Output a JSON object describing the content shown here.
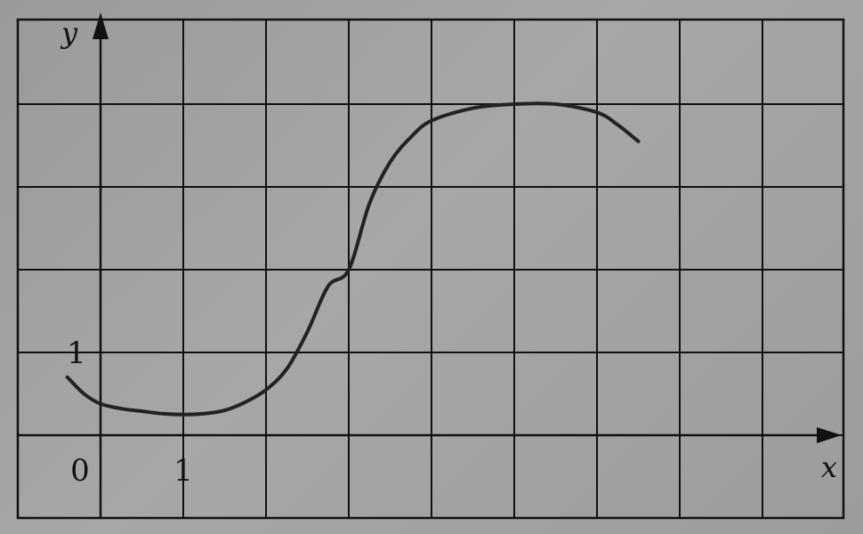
{
  "chart_data": {
    "type": "line",
    "xlabel": "x",
    "ylabel": "y",
    "xlim": [
      -0.4,
      8
    ],
    "ylim": [
      -1,
      5
    ],
    "grid": true,
    "tick_labels": {
      "origin": "0",
      "x_one": "1",
      "y_one": "1"
    },
    "series": [
      {
        "x": [
          -0.4,
          -0.2,
          0,
          0.25,
          0.5,
          0.75,
          1,
          1.25,
          1.5,
          1.75,
          2,
          2.25,
          2.5,
          2.75,
          3,
          3.25,
          3.5,
          3.75,
          4,
          4.5,
          5,
          5.5,
          6,
          6.25,
          6.5
        ],
        "y": [
          0.7,
          0.5,
          0.38,
          0.32,
          0.29,
          0.26,
          0.25,
          0.26,
          0.3,
          0.4,
          0.55,
          0.8,
          1.25,
          1.8,
          2.0,
          2.8,
          3.3,
          3.6,
          3.8,
          3.95,
          4.0,
          4.0,
          3.9,
          3.75,
          3.55
        ]
      }
    ],
    "colors": {
      "line": "#222222",
      "grid": "#111111",
      "background": "#a3a3a3"
    }
  }
}
